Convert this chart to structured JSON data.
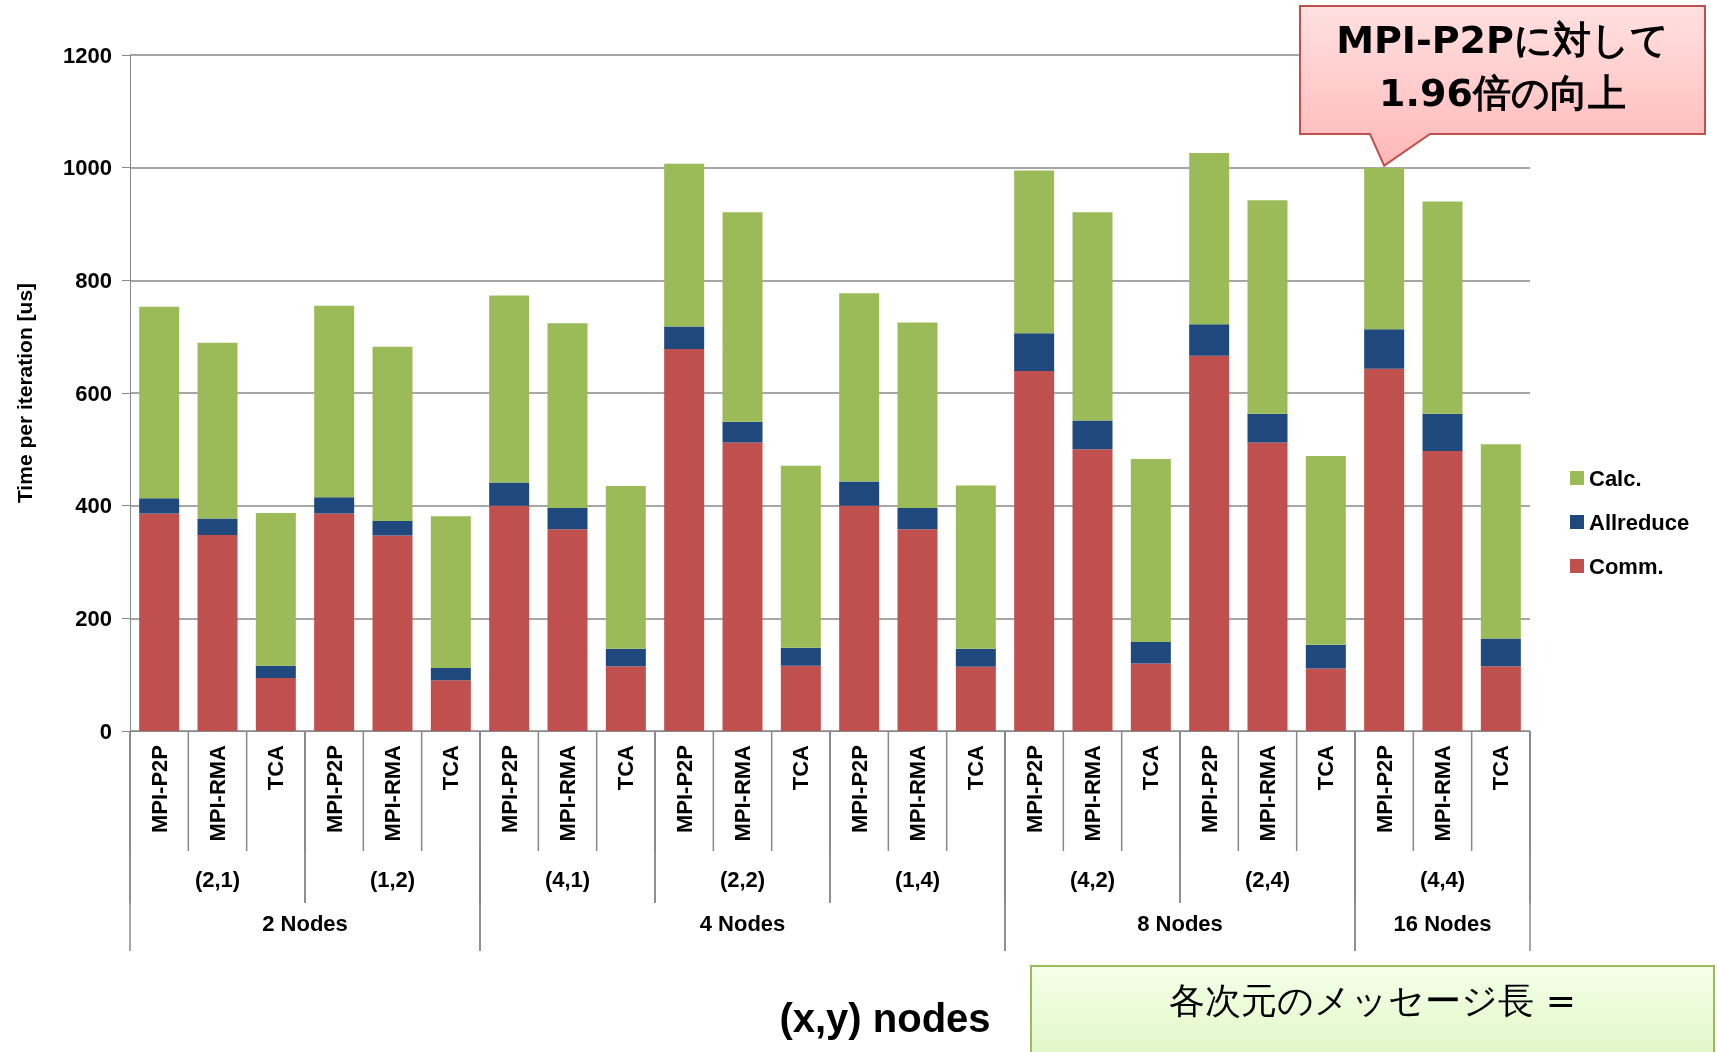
{
  "chart_data": {
    "type": "bar",
    "stacked": true,
    "ylabel": "Time per iteration [us]",
    "xlabel": "(x,y) nodes",
    "categories": [
      "MPI-P2P",
      "MPI-RMA",
      "TCA",
      "MPI-P2P",
      "MPI-RMA",
      "TCA",
      "MPI-P2P",
      "MPI-RMA",
      "TCA",
      "MPI-P2P",
      "MPI-RMA",
      "TCA",
      "MPI-P2P",
      "MPI-RMA",
      "TCA",
      "MPI-P2P",
      "MPI-RMA",
      "TCA",
      "MPI-P2P",
      "MPI-RMA",
      "TCA",
      "MPI-P2P",
      "MPI-RMA",
      "TCA"
    ],
    "series": [
      {
        "name": "Comm.",
        "color": "#c0504d",
        "values": [
          386,
          348,
          94,
          386,
          347,
          90,
          400,
          358,
          115,
          678,
          512,
          116,
          400,
          358,
          114,
          639,
          500,
          120,
          666,
          512,
          111,
          643,
          497,
          115
        ]
      },
      {
        "name": "Allreduce",
        "color": "#1f497d",
        "values": [
          27,
          29,
          22,
          29,
          26,
          22,
          41,
          38,
          31,
          40,
          37,
          32,
          43,
          38,
          32,
          67,
          51,
          38,
          56,
          51,
          42,
          70,
          66,
          49
        ]
      },
      {
        "name": "Calc.",
        "color": "#9bbb59",
        "values": [
          340,
          312,
          271,
          340,
          309,
          269,
          332,
          328,
          289,
          289,
          372,
          323,
          334,
          329,
          290,
          289,
          370,
          325,
          304,
          379,
          335,
          287,
          377,
          345
        ]
      }
    ],
    "ylim": [
      0,
      1200
    ],
    "yticks": [
      0,
      200,
      400,
      600,
      800,
      1000,
      1200
    ],
    "grid": "y",
    "legend": "right",
    "annotations": [
      "(2,1)",
      "(1,2)",
      "(4,1)",
      "(2,2)",
      "(1,4)",
      "(4,2)",
      "(2,4)",
      "(4,4)",
      "2 Nodes",
      "4 Nodes",
      "8 Nodes",
      "16 Nodes",
      "MPI-P2Pに対して1.96倍の向上",
      "各次元のメッセージ長 ="
    ]
  }
}
